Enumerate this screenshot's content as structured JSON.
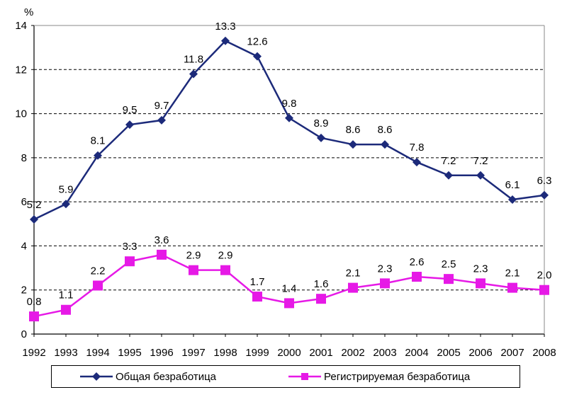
{
  "chart_data": {
    "type": "line",
    "ylabel": "%",
    "ylim": [
      0,
      14
    ],
    "yticks": [
      0,
      2,
      4,
      6,
      8,
      10,
      12,
      14
    ],
    "categories": [
      "1992",
      "1993",
      "1994",
      "1995",
      "1996",
      "1997",
      "1998",
      "1999",
      "2000",
      "2001",
      "2002",
      "2003",
      "2004",
      "2005",
      "2006",
      "2007",
      "2008"
    ],
    "grid": "horizontal dashed",
    "legend_position": "bottom",
    "series": [
      {
        "name": "Общая безработица",
        "color": "#1c2a7a",
        "marker": "diamond",
        "values": [
          5.2,
          5.9,
          8.1,
          9.5,
          9.7,
          11.8,
          13.3,
          12.6,
          9.8,
          8.9,
          8.6,
          8.6,
          7.8,
          7.2,
          7.2,
          6.1,
          6.3
        ],
        "labels": [
          "5.2",
          "5.9",
          "8.1",
          "9.5",
          "9.7",
          "11.8",
          "13.3",
          "12.6",
          "9.8",
          "8.9",
          "8.6",
          "8.6",
          "7.8",
          "7.2",
          "7.2",
          "6.1",
          "6.3"
        ]
      },
      {
        "name": "Регистрируемая безработица",
        "color": "#e619e6",
        "marker": "square",
        "values": [
          0.8,
          1.1,
          2.2,
          3.3,
          3.6,
          2.9,
          2.9,
          1.7,
          1.4,
          1.6,
          2.1,
          2.3,
          2.6,
          2.5,
          2.3,
          2.1,
          2.0
        ],
        "labels": [
          "0.8",
          "1.1",
          "2.2",
          "3.3",
          "3.6",
          "2.9",
          "2.9",
          "1.7",
          "1.4",
          "1.6",
          "2.1",
          "2.3",
          "2.6",
          "2.5",
          "2.3",
          "2.1",
          "2.0"
        ]
      }
    ]
  }
}
